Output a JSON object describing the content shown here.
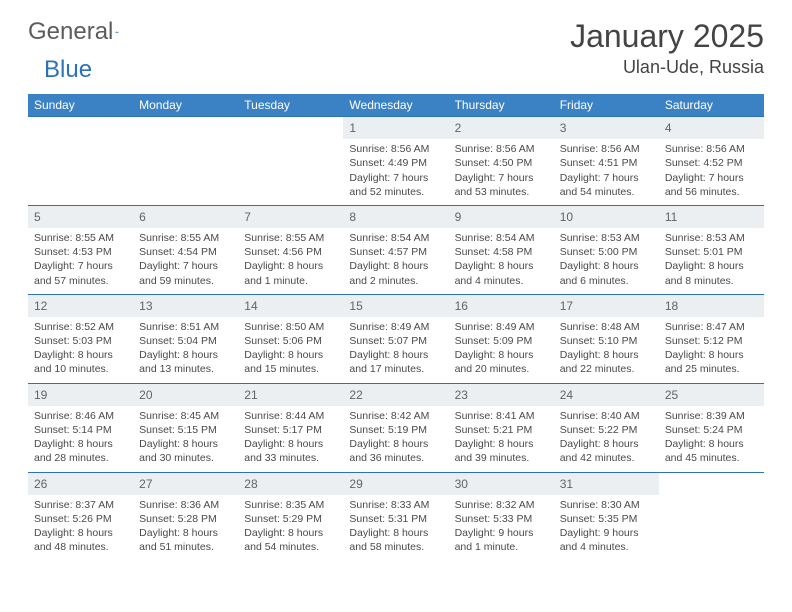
{
  "brand": {
    "word1": "General",
    "word2": "Blue"
  },
  "title": "January 2025",
  "location": "Ulan-Ude, Russia",
  "colors": {
    "header_bg": "#3b82c4",
    "header_text": "#ffffff",
    "daynum_bg": "#eceff1",
    "daynum_text": "#606468",
    "rule": "#2d72b8",
    "body_text": "#4a4a4a",
    "title_text": "#444444",
    "brand_gray": "#5c5c5c",
    "brand_blue": "#2d72b8"
  },
  "typography": {
    "title_fontsize": 32,
    "location_fontsize": 18,
    "dayheader_fontsize": 12,
    "daynum_fontsize": 12,
    "cell_fontsize": 10.5
  },
  "day_headers": [
    "Sunday",
    "Monday",
    "Tuesday",
    "Wednesday",
    "Thursday",
    "Friday",
    "Saturday"
  ],
  "weeks": [
    [
      {
        "n": "",
        "l1": "",
        "l2": "",
        "l3": "",
        "l4": ""
      },
      {
        "n": "",
        "l1": "",
        "l2": "",
        "l3": "",
        "l4": ""
      },
      {
        "n": "",
        "l1": "",
        "l2": "",
        "l3": "",
        "l4": ""
      },
      {
        "n": "1",
        "l1": "Sunrise: 8:56 AM",
        "l2": "Sunset: 4:49 PM",
        "l3": "Daylight: 7 hours",
        "l4": "and 52 minutes."
      },
      {
        "n": "2",
        "l1": "Sunrise: 8:56 AM",
        "l2": "Sunset: 4:50 PM",
        "l3": "Daylight: 7 hours",
        "l4": "and 53 minutes."
      },
      {
        "n": "3",
        "l1": "Sunrise: 8:56 AM",
        "l2": "Sunset: 4:51 PM",
        "l3": "Daylight: 7 hours",
        "l4": "and 54 minutes."
      },
      {
        "n": "4",
        "l1": "Sunrise: 8:56 AM",
        "l2": "Sunset: 4:52 PM",
        "l3": "Daylight: 7 hours",
        "l4": "and 56 minutes."
      }
    ],
    [
      {
        "n": "5",
        "l1": "Sunrise: 8:55 AM",
        "l2": "Sunset: 4:53 PM",
        "l3": "Daylight: 7 hours",
        "l4": "and 57 minutes."
      },
      {
        "n": "6",
        "l1": "Sunrise: 8:55 AM",
        "l2": "Sunset: 4:54 PM",
        "l3": "Daylight: 7 hours",
        "l4": "and 59 minutes."
      },
      {
        "n": "7",
        "l1": "Sunrise: 8:55 AM",
        "l2": "Sunset: 4:56 PM",
        "l3": "Daylight: 8 hours",
        "l4": "and 1 minute."
      },
      {
        "n": "8",
        "l1": "Sunrise: 8:54 AM",
        "l2": "Sunset: 4:57 PM",
        "l3": "Daylight: 8 hours",
        "l4": "and 2 minutes."
      },
      {
        "n": "9",
        "l1": "Sunrise: 8:54 AM",
        "l2": "Sunset: 4:58 PM",
        "l3": "Daylight: 8 hours",
        "l4": "and 4 minutes."
      },
      {
        "n": "10",
        "l1": "Sunrise: 8:53 AM",
        "l2": "Sunset: 5:00 PM",
        "l3": "Daylight: 8 hours",
        "l4": "and 6 minutes."
      },
      {
        "n": "11",
        "l1": "Sunrise: 8:53 AM",
        "l2": "Sunset: 5:01 PM",
        "l3": "Daylight: 8 hours",
        "l4": "and 8 minutes."
      }
    ],
    [
      {
        "n": "12",
        "l1": "Sunrise: 8:52 AM",
        "l2": "Sunset: 5:03 PM",
        "l3": "Daylight: 8 hours",
        "l4": "and 10 minutes."
      },
      {
        "n": "13",
        "l1": "Sunrise: 8:51 AM",
        "l2": "Sunset: 5:04 PM",
        "l3": "Daylight: 8 hours",
        "l4": "and 13 minutes."
      },
      {
        "n": "14",
        "l1": "Sunrise: 8:50 AM",
        "l2": "Sunset: 5:06 PM",
        "l3": "Daylight: 8 hours",
        "l4": "and 15 minutes."
      },
      {
        "n": "15",
        "l1": "Sunrise: 8:49 AM",
        "l2": "Sunset: 5:07 PM",
        "l3": "Daylight: 8 hours",
        "l4": "and 17 minutes."
      },
      {
        "n": "16",
        "l1": "Sunrise: 8:49 AM",
        "l2": "Sunset: 5:09 PM",
        "l3": "Daylight: 8 hours",
        "l4": "and 20 minutes."
      },
      {
        "n": "17",
        "l1": "Sunrise: 8:48 AM",
        "l2": "Sunset: 5:10 PM",
        "l3": "Daylight: 8 hours",
        "l4": "and 22 minutes."
      },
      {
        "n": "18",
        "l1": "Sunrise: 8:47 AM",
        "l2": "Sunset: 5:12 PM",
        "l3": "Daylight: 8 hours",
        "l4": "and 25 minutes."
      }
    ],
    [
      {
        "n": "19",
        "l1": "Sunrise: 8:46 AM",
        "l2": "Sunset: 5:14 PM",
        "l3": "Daylight: 8 hours",
        "l4": "and 28 minutes."
      },
      {
        "n": "20",
        "l1": "Sunrise: 8:45 AM",
        "l2": "Sunset: 5:15 PM",
        "l3": "Daylight: 8 hours",
        "l4": "and 30 minutes."
      },
      {
        "n": "21",
        "l1": "Sunrise: 8:44 AM",
        "l2": "Sunset: 5:17 PM",
        "l3": "Daylight: 8 hours",
        "l4": "and 33 minutes."
      },
      {
        "n": "22",
        "l1": "Sunrise: 8:42 AM",
        "l2": "Sunset: 5:19 PM",
        "l3": "Daylight: 8 hours",
        "l4": "and 36 minutes."
      },
      {
        "n": "23",
        "l1": "Sunrise: 8:41 AM",
        "l2": "Sunset: 5:21 PM",
        "l3": "Daylight: 8 hours",
        "l4": "and 39 minutes."
      },
      {
        "n": "24",
        "l1": "Sunrise: 8:40 AM",
        "l2": "Sunset: 5:22 PM",
        "l3": "Daylight: 8 hours",
        "l4": "and 42 minutes."
      },
      {
        "n": "25",
        "l1": "Sunrise: 8:39 AM",
        "l2": "Sunset: 5:24 PM",
        "l3": "Daylight: 8 hours",
        "l4": "and 45 minutes."
      }
    ],
    [
      {
        "n": "26",
        "l1": "Sunrise: 8:37 AM",
        "l2": "Sunset: 5:26 PM",
        "l3": "Daylight: 8 hours",
        "l4": "and 48 minutes."
      },
      {
        "n": "27",
        "l1": "Sunrise: 8:36 AM",
        "l2": "Sunset: 5:28 PM",
        "l3": "Daylight: 8 hours",
        "l4": "and 51 minutes."
      },
      {
        "n": "28",
        "l1": "Sunrise: 8:35 AM",
        "l2": "Sunset: 5:29 PM",
        "l3": "Daylight: 8 hours",
        "l4": "and 54 minutes."
      },
      {
        "n": "29",
        "l1": "Sunrise: 8:33 AM",
        "l2": "Sunset: 5:31 PM",
        "l3": "Daylight: 8 hours",
        "l4": "and 58 minutes."
      },
      {
        "n": "30",
        "l1": "Sunrise: 8:32 AM",
        "l2": "Sunset: 5:33 PM",
        "l3": "Daylight: 9 hours",
        "l4": "and 1 minute."
      },
      {
        "n": "31",
        "l1": "Sunrise: 8:30 AM",
        "l2": "Sunset: 5:35 PM",
        "l3": "Daylight: 9 hours",
        "l4": "and 4 minutes."
      },
      {
        "n": "",
        "l1": "",
        "l2": "",
        "l3": "",
        "l4": ""
      }
    ]
  ]
}
